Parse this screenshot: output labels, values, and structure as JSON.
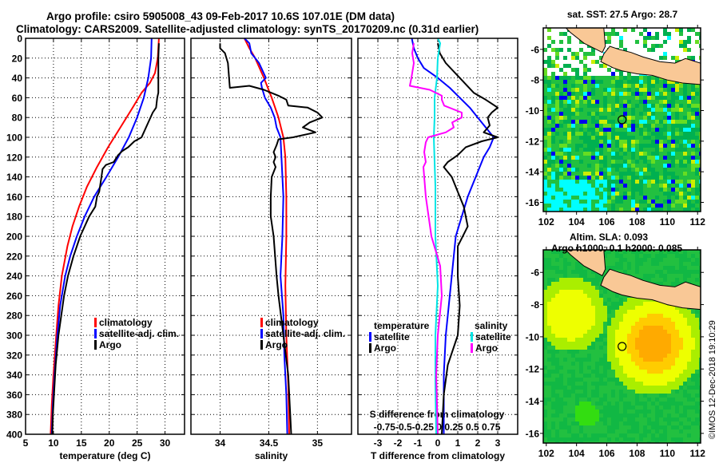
{
  "header": {
    "title_line1": "Argo profile: csiro 5905008_43 09-Feb-2017 10.6S 107.01E (DM data)",
    "title_line2": "Climatology: CARS2009. Satellite-adjusted climatology: synTS_20170209.nc (0.31d earlier)"
  },
  "colors": {
    "climatology": "#ff0000",
    "satellite": "#0000ff",
    "argo": "#000000",
    "salinity_satellite": "#00e5e5",
    "salinity_argo": "#ff00ff",
    "land": "#f9c896"
  },
  "chart_data": [
    {
      "type": "line",
      "name": "temperature-profile",
      "title": "",
      "xlabel": "temperature (deg C)",
      "ylabel": "",
      "xlim": [
        5,
        33.5
      ],
      "ylim": [
        400,
        0
      ],
      "xticks": [
        5,
        10,
        15,
        20,
        25,
        30
      ],
      "yticks": [
        0,
        20,
        40,
        60,
        80,
        100,
        120,
        140,
        160,
        180,
        200,
        220,
        240,
        260,
        280,
        300,
        320,
        340,
        360,
        380,
        400
      ],
      "grid": true,
      "legend": {
        "position": "lower-right",
        "entries": [
          "climatology",
          "satellite-adj. clim.",
          "Argo"
        ]
      },
      "series": [
        {
          "name": "climatology",
          "color": "#ff0000",
          "depth": [
            0,
            20,
            35,
            45,
            55,
            70,
            90,
            110,
            130,
            150,
            170,
            190,
            210,
            240,
            270,
            300,
            340,
            370,
            400
          ],
          "values": [
            28.9,
            28.7,
            28.2,
            27.3,
            25.8,
            24.2,
            22.0,
            19.8,
            17.8,
            16.0,
            14.6,
            13.4,
            12.5,
            11.5,
            10.9,
            10.5,
            10.0,
            9.7,
            9.5
          ]
        },
        {
          "name": "satellite-adj. clim.",
          "color": "#0000ff",
          "depth": [
            0,
            20,
            40,
            60,
            80,
            100,
            120,
            140,
            160,
            180,
            200,
            220,
            240,
            270,
            300,
            340,
            370,
            400
          ],
          "values": [
            27.6,
            27.5,
            27.0,
            26.2,
            25.0,
            23.5,
            21.6,
            19.5,
            17.3,
            15.6,
            14.2,
            13.0,
            12.1,
            11.2,
            10.7,
            10.2,
            9.9,
            9.7
          ]
        },
        {
          "name": "Argo",
          "color": "#000000",
          "depth": [
            5,
            20,
            40,
            55,
            60,
            70,
            75,
            85,
            95,
            100,
            104,
            110,
            114,
            118,
            125,
            128,
            132,
            140,
            155,
            160,
            170,
            180,
            200,
            220,
            240,
            260,
            280,
            300,
            330,
            360,
            380,
            400
          ],
          "values": [
            28.9,
            28.8,
            28.8,
            28.8,
            28.6,
            28.4,
            27.8,
            27.0,
            26.2,
            25.8,
            24.5,
            23.4,
            22.3,
            21.6,
            20.8,
            19.4,
            18.8,
            18.6,
            18.2,
            17.8,
            17.5,
            16.4,
            14.8,
            13.6,
            12.6,
            11.9,
            11.4,
            10.9,
            10.4,
            10.1,
            9.9,
            9.8
          ]
        }
      ]
    },
    {
      "type": "line",
      "name": "salinity-profile",
      "xlabel": "salinity",
      "xlim": [
        33.7,
        35.35
      ],
      "ylim": [
        400,
        0
      ],
      "xticks": [
        34,
        34.5,
        35
      ],
      "xtick_labels": [
        "34",
        "34.5",
        "35"
      ],
      "grid": true,
      "legend": {
        "position": "lower-right",
        "entries": [
          "climatology",
          "satellite-adj. clim.",
          "Argo"
        ]
      },
      "series": [
        {
          "name": "climatology",
          "color": "#ff0000",
          "depth": [
            0,
            10,
            20,
            40,
            60,
            80,
            100,
            120,
            160,
            200,
            250,
            300,
            350,
            400
          ],
          "values": [
            34.25,
            34.3,
            34.36,
            34.45,
            34.53,
            34.6,
            34.65,
            34.67,
            34.68,
            34.68,
            34.67,
            34.68,
            34.7,
            34.71
          ]
        },
        {
          "name": "satellite-adj. clim.",
          "color": "#0000ff",
          "depth": [
            0,
            5,
            15,
            25,
            40,
            45,
            50,
            60,
            70,
            80,
            90,
            100,
            120,
            160,
            200,
            240,
            280,
            320,
            360,
            400
          ],
          "values": [
            34.25,
            34.3,
            34.32,
            34.4,
            34.47,
            34.42,
            34.43,
            34.46,
            34.52,
            34.56,
            34.58,
            34.62,
            34.63,
            34.65,
            34.64,
            34.62,
            34.65,
            34.66,
            34.68,
            34.69
          ]
        },
        {
          "name": "Argo",
          "color": "#000000",
          "depth": [
            5,
            10,
            15,
            25,
            50,
            48,
            52,
            58,
            62,
            68,
            70,
            75,
            80,
            85,
            90,
            95,
            100,
            102,
            108,
            115,
            120,
            125,
            130,
            140,
            160,
            180,
            200,
            240,
            260,
            300,
            340,
            380,
            400
          ],
          "values": [
            34.0,
            34.0,
            34.05,
            34.08,
            34.1,
            34.3,
            34.45,
            34.6,
            34.68,
            34.7,
            34.9,
            35.0,
            35.05,
            34.92,
            34.85,
            34.98,
            34.75,
            34.6,
            34.58,
            34.55,
            34.57,
            34.55,
            34.57,
            34.53,
            34.52,
            34.52,
            34.55,
            34.58,
            34.6,
            34.65,
            34.7,
            34.72,
            34.73
          ]
        }
      ]
    },
    {
      "type": "line",
      "name": "difference-profile",
      "xlabel": "T difference from climatology",
      "x2label": "S difference from climatology",
      "xlim": [
        -4,
        4
      ],
      "ylim": [
        400,
        0
      ],
      "xticks": [
        -3,
        -2,
        -1,
        0,
        1,
        2,
        3
      ],
      "xtick_labels": [
        "-3",
        "-2",
        "-1",
        "0",
        "1",
        "2",
        "3"
      ],
      "x2ticks": [
        -0.75,
        -0.5,
        -0.25,
        0,
        0.25,
        0.5,
        0.75
      ],
      "x2tick_labels": [
        "-0.75",
        "-0.5",
        "-0.25",
        "0",
        "0.25",
        "0.5",
        "0.75"
      ],
      "grid": true,
      "legend": {
        "position": "lower-center",
        "groups": [
          {
            "title": "temperature",
            "entries": [
              "satellite",
              "Argo"
            ]
          },
          {
            "title": "salinity",
            "entries": [
              "satellite",
              "Argo"
            ]
          }
        ]
      },
      "series": [
        {
          "name": "temperature satellite",
          "color": "#0000ff",
          "axis": "T",
          "depth": [
            0,
            10,
            20,
            30,
            40,
            50,
            60,
            70,
            80,
            90,
            100,
            110,
            120,
            140,
            160,
            180,
            200,
            220,
            240,
            260,
            280,
            300,
            340,
            400
          ],
          "values": [
            -1.3,
            -1.2,
            -1.0,
            -0.7,
            0.0,
            0.6,
            1.1,
            1.6,
            2.0,
            2.4,
            2.8,
            2.6,
            2.3,
            1.9,
            1.5,
            1.2,
            0.9,
            0.8,
            0.7,
            0.6,
            0.5,
            0.4,
            0.3,
            0.3
          ]
        },
        {
          "name": "temperature Argo",
          "color": "#000000",
          "axis": "T",
          "depth": [
            5,
            15,
            25,
            40,
            55,
            62,
            70,
            75,
            80,
            88,
            95,
            100,
            104,
            110,
            118,
            125,
            130,
            140,
            155,
            170,
            190,
            210,
            240,
            270,
            300,
            330,
            360,
            400
          ],
          "values": [
            0.0,
            0.1,
            0.4,
            1.1,
            1.8,
            2.4,
            3.0,
            2.7,
            2.5,
            2.6,
            2.3,
            3.0,
            2.2,
            1.4,
            1.0,
            0.5,
            0.3,
            0.7,
            1.0,
            1.3,
            1.5,
            1.0,
            1.0,
            1.1,
            1.0,
            0.5,
            0.3,
            0.2
          ]
        },
        {
          "name": "salinity satellite",
          "color": "#00e5e5",
          "axis": "S",
          "depth": [
            0,
            5,
            20,
            40,
            60,
            80,
            100,
            150,
            200,
            250,
            300,
            350,
            400
          ],
          "values": [
            0.0,
            0.03,
            0.0,
            -0.01,
            -0.04,
            -0.04,
            -0.05,
            -0.03,
            -0.03,
            0.0,
            -0.03,
            -0.03,
            -0.02
          ]
        },
        {
          "name": "salinity Argo",
          "color": "#ff00ff",
          "axis": "S",
          "depth": [
            5,
            15,
            25,
            40,
            48,
            52,
            58,
            62,
            68,
            75,
            80,
            85,
            90,
            95,
            100,
            105,
            115,
            125,
            130,
            160,
            200,
            230,
            260,
            300,
            340,
            400
          ],
          "values": [
            -0.3,
            -0.32,
            -0.3,
            -0.33,
            -0.35,
            -0.1,
            0.05,
            0.05,
            0.08,
            0.3,
            0.3,
            0.18,
            0.2,
            0.1,
            -0.12,
            -0.15,
            -0.17,
            -0.15,
            -0.18,
            -0.15,
            -0.08,
            0.03,
            0.05,
            0.0,
            -0.02,
            0.0
          ]
        }
      ]
    },
    {
      "type": "heatmap",
      "name": "sst-map",
      "title": "sat. SST: 27.5 Argo: 28.7",
      "xlim": [
        101.8,
        112.2
      ],
      "ylim": [
        -16.6,
        -4.6
      ],
      "xticks": [
        102,
        104,
        106,
        108,
        110,
        112
      ],
      "yticks": [
        -6,
        -8,
        -10,
        -12,
        -14,
        -16
      ],
      "argo_position": {
        "lon": 107.01,
        "lat": -10.6
      }
    },
    {
      "type": "heatmap",
      "name": "sla-map",
      "title": "Altim. SLA: 0.093",
      "subtitle": "Argo h1000: 0.1 h2000: 0.085",
      "xlim": [
        101.8,
        112.2
      ],
      "ylim": [
        -16.6,
        -4.6
      ],
      "xticks": [
        102,
        104,
        106,
        108,
        110,
        112
      ],
      "yticks": [
        -6,
        -8,
        -10,
        -12,
        -14,
        -16
      ],
      "argo_position": {
        "lon": 107.01,
        "lat": -10.6
      }
    }
  ],
  "labels": {
    "legend_climatology": "climatology",
    "legend_satellite_adj": "satellite-adj. clim.",
    "legend_argo": "Argo",
    "legend_temperature": "temperature",
    "legend_salinity": "salinity",
    "legend_satellite": "satellite",
    "credit": "©IMOS 12-Dec-2018 19:10:29"
  }
}
